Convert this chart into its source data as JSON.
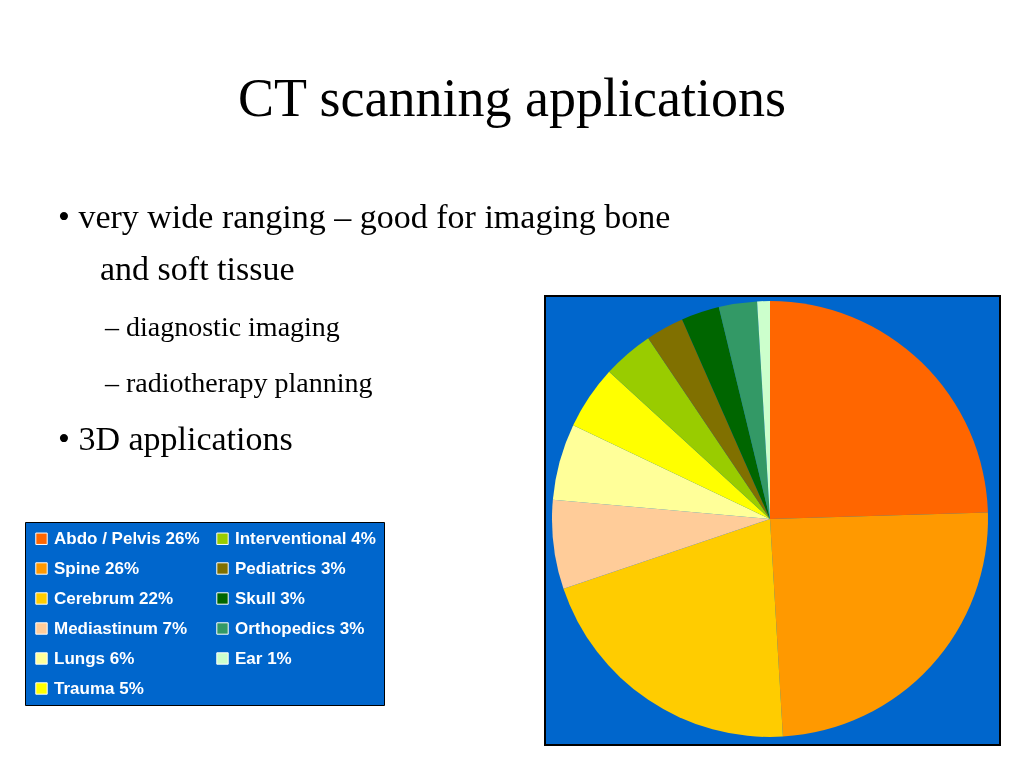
{
  "chart_data": {
    "type": "pie",
    "title": "CT scanning applications",
    "categories": [
      "Abdo / Pelvis 26%",
      "Spine 26%",
      "Cerebrum 22%",
      "Mediastinum 7%",
      "Lungs 6%",
      "Trauma 5%",
      "Interventional 4%",
      "Pediatrics 3%",
      "Skull 3%",
      "Orthopedics 3%",
      "Ear 1%"
    ],
    "values": [
      26,
      26,
      22,
      7,
      6,
      5,
      4,
      3,
      3,
      3,
      1
    ],
    "colors": [
      "#ff6600",
      "#ff9900",
      "#ffcc00",
      "#ffcc99",
      "#ffff99",
      "#ffff00",
      "#99cc00",
      "#807000",
      "#006600",
      "#339966",
      "#ccffcc"
    ],
    "legend": "left",
    "annotations": [
      "• very wide ranging – good for imaging bone and soft tissue",
      "– diagnostic imaging",
      "– radiotherapy planning",
      "• 3D applications"
    ]
  }
}
